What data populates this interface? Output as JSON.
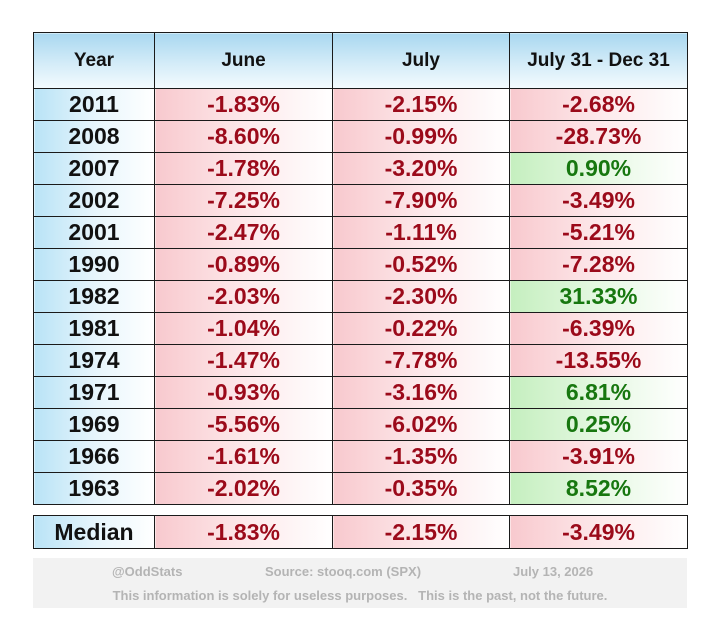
{
  "chart_data": {
    "type": "table",
    "columns": [
      "Year",
      "June",
      "July",
      "July 31 - Dec 31"
    ],
    "rows": [
      {
        "year": "2011",
        "june": "-1.83%",
        "july": "-2.15%",
        "rest": "-2.68%"
      },
      {
        "year": "2008",
        "june": "-8.60%",
        "july": "-0.99%",
        "rest": "-28.73%"
      },
      {
        "year": "2007",
        "june": "-1.78%",
        "july": "-3.20%",
        "rest": "0.90%"
      },
      {
        "year": "2002",
        "june": "-7.25%",
        "july": "-7.90%",
        "rest": "-3.49%"
      },
      {
        "year": "2001",
        "june": "-2.47%",
        "july": "-1.11%",
        "rest": "-5.21%"
      },
      {
        "year": "1990",
        "june": "-0.89%",
        "july": "-0.52%",
        "rest": "-7.28%"
      },
      {
        "year": "1982",
        "june": "-2.03%",
        "july": "-2.30%",
        "rest": "31.33%"
      },
      {
        "year": "1981",
        "june": "-1.04%",
        "july": "-0.22%",
        "rest": "-6.39%"
      },
      {
        "year": "1974",
        "june": "-1.47%",
        "july": "-7.78%",
        "rest": "-13.55%"
      },
      {
        "year": "1971",
        "june": "-0.93%",
        "july": "-3.16%",
        "rest": "6.81%"
      },
      {
        "year": "1969",
        "june": "-5.56%",
        "july": "-6.02%",
        "rest": "0.25%"
      },
      {
        "year": "1966",
        "june": "-1.61%",
        "july": "-1.35%",
        "rest": "-3.91%"
      },
      {
        "year": "1963",
        "june": "-2.02%",
        "july": "-0.35%",
        "rest": "8.52%"
      }
    ],
    "median": {
      "label": "Median",
      "june": "-1.83%",
      "july": "-2.15%",
      "rest": "-3.49%"
    }
  },
  "footer": {
    "handle": "@OddStats",
    "source": "Source: stooq.com (SPX)",
    "date": "July 13, 2026",
    "disclaimer": "This information is solely for useless purposes.   This is the past, not the future."
  },
  "colors": {
    "negative_text": "#9b0a1a",
    "positive_text": "#17770f",
    "header_blue": "#a9d8f0",
    "negative_fill": "#f8c9ce",
    "positive_fill": "#c5efbf"
  }
}
